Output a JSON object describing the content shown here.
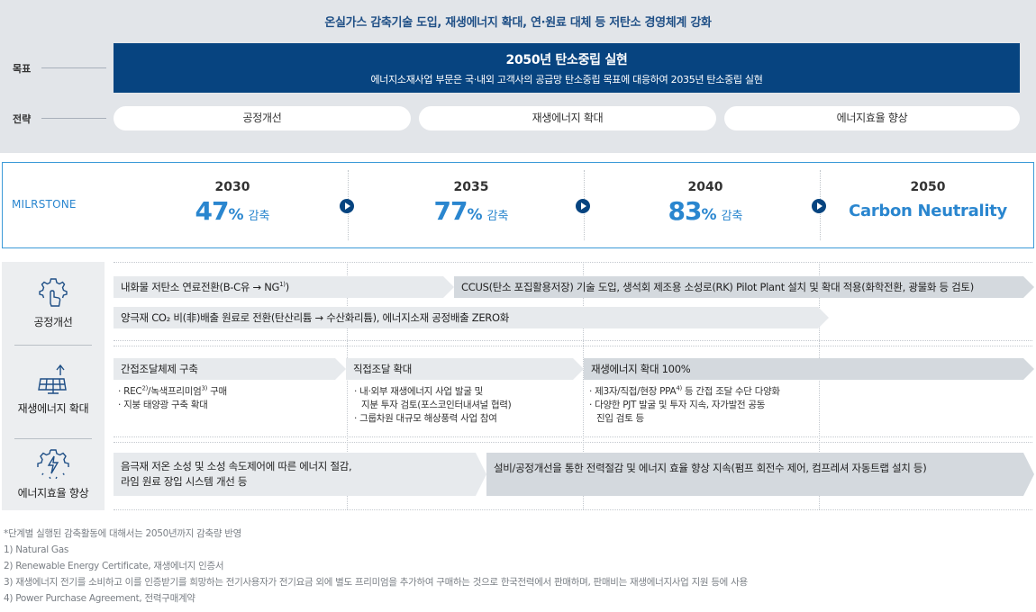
{
  "header": "온실가스 감축기술 도입, 재생에너지 확대, 연·원료 대체 등 저탄소 경영체계 강화",
  "goal": {
    "label": "목표",
    "title": "2050년 탄소중립 실현",
    "subtitle": "에너지소재사업 부문은 국·내외 고객사의 공급망 탄소중립 목표에 대응하여 2035년 탄소중립 실현"
  },
  "strategy": {
    "label": "전략",
    "items": [
      "공정개선",
      "재생에너지 확대",
      "에너지효율 향상"
    ]
  },
  "milestone": {
    "label": "MILRSTONE",
    "steps": [
      {
        "year": "2030",
        "value": "47",
        "pct": "%",
        "unit": "감축"
      },
      {
        "year": "2035",
        "value": "77",
        "pct": "%",
        "unit": "감축"
      },
      {
        "year": "2040",
        "value": "83",
        "pct": "%",
        "unit": "감축"
      },
      {
        "year": "2050",
        "text": "Carbon Neutrality"
      }
    ]
  },
  "categories": {
    "process": {
      "label": "공정개선",
      "icon": "gear-hand-icon"
    },
    "renewable": {
      "label": "재생에너지 확대",
      "icon": "solar-panel-icon"
    },
    "efficiency": {
      "label": "에너지효율 향상",
      "icon": "gear-lightning-icon"
    }
  },
  "process": {
    "bar1": "내화물 저탄소 연료전환(B-C유 → NG",
    "bar1_sup": "1)",
    "bar1_tail": ")",
    "bar2": "CCUS(탄소 포집활용저장) 기술 도입, 생석회 제조용 소성로(RK) Pilot Plant 설치 및 확대 적용(화학전환, 광물화 등 검토)",
    "bar3": "양극재 CO₂ 비(非)배출 원료로 전환(탄산리튬 → 수산화리튬), 에너지소재 공정배출 ZERO화"
  },
  "renewable": {
    "bar1": "간접조달체제 구축",
    "bar2": "직접조달 확대",
    "bar3": "재생에너지 확대 100%",
    "b1_1_pre": "REC",
    "b1_1_sup": "2)",
    "b1_1_mid": "/녹색프리미엄",
    "b1_1_sup2": "3)",
    "b1_1_tail": " 구매",
    "b1_2": "지붕 태양광 구축 확대",
    "b2_1a": "내·외부 재생에너지 사업 발굴 및",
    "b2_1b": "지분 투자 검토(포스코인터내셔널 협력)",
    "b2_2": "그룹차원 대규모 해상풍력 사업 참여",
    "b3_1_pre": "제3자/직접/현장 PPA",
    "b3_1_sup": "4)",
    "b3_1_tail": " 등 간접 조달 수단 다양화",
    "b3_2a": "다양한 PJT 발굴 및 투자 지속, 자가발전 공동",
    "b3_2b": "진입 검토 등"
  },
  "efficiency": {
    "bar1a": "음극재 저온 소성 및 소성 속도제어에 따른 에너지 절감,",
    "bar1b": "라임 원료 장입 시스템 개선 등",
    "bar2": "설비/공정개선을 통한 전력절감 및 에너지 효율 향상 지속(펌프 회전수 제어, 컴프레셔 자동트랩 설치 등)"
  },
  "notes": [
    "*단계별 실행된 감축활동에 대해서는 2050년까지 감축량 반영",
    "1) Natural Gas",
    "2) Renewable Energy Certificate, 재생에너지 인증서",
    "3) 재생에너지 전기를 소비하고 이를 인증받기를 희망하는 전기사용자가 전기요금 외에 별도 프리미엄을 추가하여 구매하는 것으로 한국전력에서 판매하며, 판매비는 재생에너지사업 지원 등에 사용",
    "4) Power Purchase Agreement, 전력구매계약"
  ],
  "colors": {
    "navy": "#074480",
    "accent_blue": "#2a86cf",
    "panel_grey": "#e2e5e9"
  }
}
